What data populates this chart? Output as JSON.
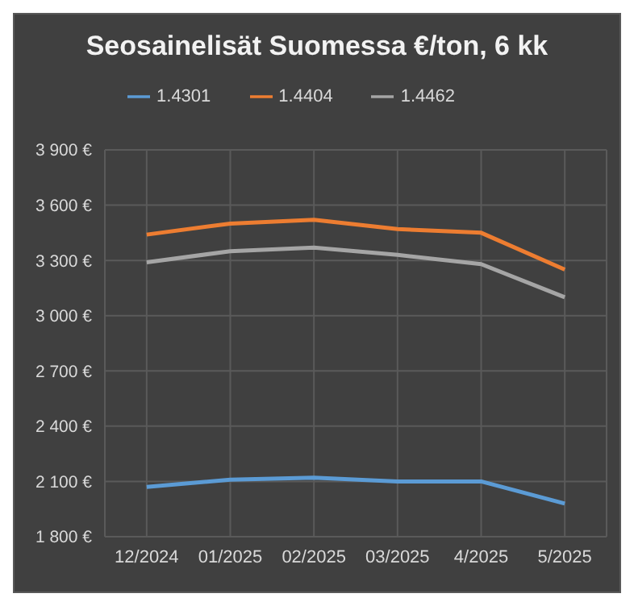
{
  "chart_data": {
    "type": "line",
    "title": "Seosainelisät Suomessa €/ton, 6 kk",
    "categories": [
      "12/2024",
      "01/2025",
      "02/2025",
      "03/2025",
      "4/2025",
      "5/2025"
    ],
    "series": [
      {
        "name": "1.4301",
        "color": "#5b9bd5",
        "values": [
          2070,
          2110,
          2120,
          2100,
          2100,
          1980
        ]
      },
      {
        "name": "1.4404",
        "color": "#ed7d31",
        "values": [
          3440,
          3500,
          3520,
          3470,
          3450,
          3250
        ]
      },
      {
        "name": "1.4462",
        "color": "#a5a5a5",
        "values": [
          3290,
          3350,
          3370,
          3330,
          3280,
          3100
        ]
      }
    ],
    "ylim": [
      1800,
      3900
    ],
    "yticks": [
      {
        "value": 1800,
        "label": "1 800 €"
      },
      {
        "value": 2100,
        "label": "2 100 €"
      },
      {
        "value": 2400,
        "label": "2 400 €"
      },
      {
        "value": 2700,
        "label": "2 700 €"
      },
      {
        "value": 3000,
        "label": "3 000 €"
      },
      {
        "value": 3300,
        "label": "3 300 €"
      },
      {
        "value": 3600,
        "label": "3 600 €"
      },
      {
        "value": 3900,
        "label": "3 900 €"
      }
    ],
    "grid": true,
    "legend": "top",
    "marker": "none",
    "line_style": "solid"
  }
}
